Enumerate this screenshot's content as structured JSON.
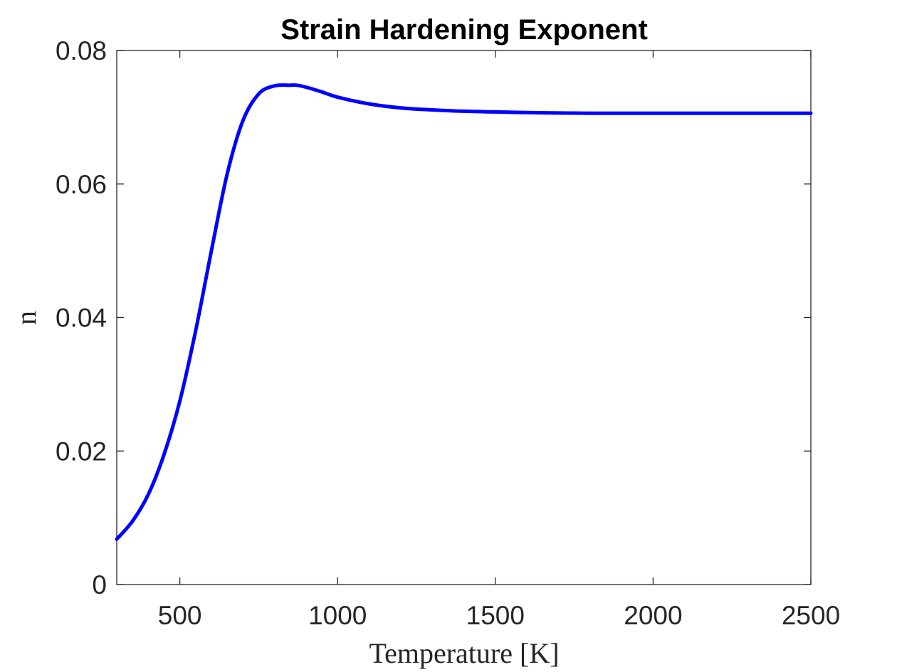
{
  "chart_data": {
    "type": "line",
    "title": "Strain Hardening Exponent",
    "xlabel": "Temperature [K]",
    "ylabel": "n",
    "xlim": [
      300,
      2500
    ],
    "ylim": [
      0,
      0.08
    ],
    "x_ticks": [
      500,
      1000,
      1500,
      2000,
      2500
    ],
    "x_tick_labels": [
      "500",
      "1000",
      "1500",
      "2000",
      "2500"
    ],
    "y_ticks": [
      0,
      0.02,
      0.04,
      0.06,
      0.08
    ],
    "y_tick_labels": [
      "0",
      "0.02",
      "0.04",
      "0.06",
      "0.08"
    ],
    "grid": false,
    "legend": "none",
    "series": [
      {
        "color": "#0000ff",
        "x": [
          300,
          350,
          400,
          450,
          500,
          550,
          600,
          650,
          700,
          750,
          800,
          850,
          870,
          900,
          950,
          1000,
          1100,
          1200,
          1300,
          1400,
          1500,
          1600,
          1800,
          2000,
          2200,
          2500
        ],
        "y": [
          0.0068,
          0.0095,
          0.0135,
          0.0195,
          0.0275,
          0.038,
          0.05,
          0.0615,
          0.0695,
          0.0735,
          0.0747,
          0.0748,
          0.0748,
          0.0745,
          0.0738,
          0.073,
          0.072,
          0.0714,
          0.0711,
          0.0709,
          0.0708,
          0.0707,
          0.0706,
          0.0706,
          0.0706,
          0.0706
        ]
      }
    ]
  }
}
